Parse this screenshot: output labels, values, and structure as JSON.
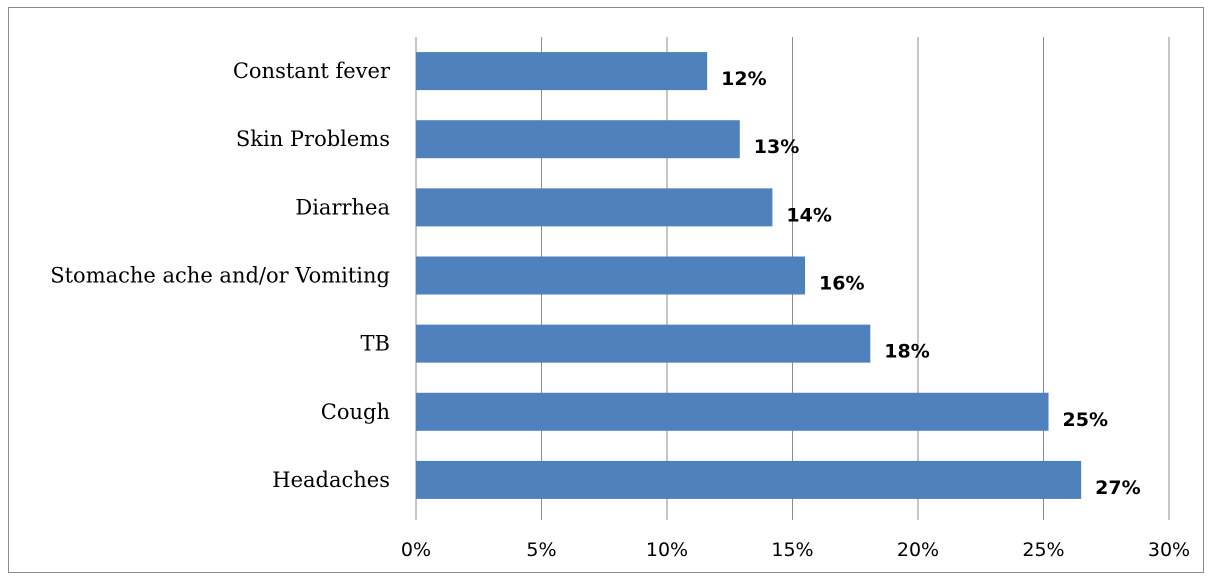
{
  "chart_data": {
    "type": "bar",
    "orientation": "horizontal",
    "categories": [
      "Headaches",
      "Cough",
      "TB",
      "Stomache ache and/or Vomiting",
      "Diarrhea",
      "Skin Problems",
      "Constant fever"
    ],
    "values": [
      26.5,
      25.2,
      18.1,
      15.5,
      14.2,
      12.9,
      11.6
    ],
    "data_labels": [
      "27%",
      "25%",
      "18%",
      "16%",
      "14%",
      "13%",
      "12%"
    ],
    "x_ticks": [
      "0%",
      "5%",
      "10%",
      "15%",
      "20%",
      "25%",
      "30%"
    ],
    "xlim": [
      0,
      30
    ],
    "x_tick_step": 5,
    "title": "",
    "xlabel": "",
    "ylabel": "",
    "grid": "vertical",
    "legend": "none",
    "colors": {
      "bar": "#4f81bd",
      "grid": "#8c8c8c",
      "frame": "#8c8c8c",
      "text": "#000000"
    }
  }
}
